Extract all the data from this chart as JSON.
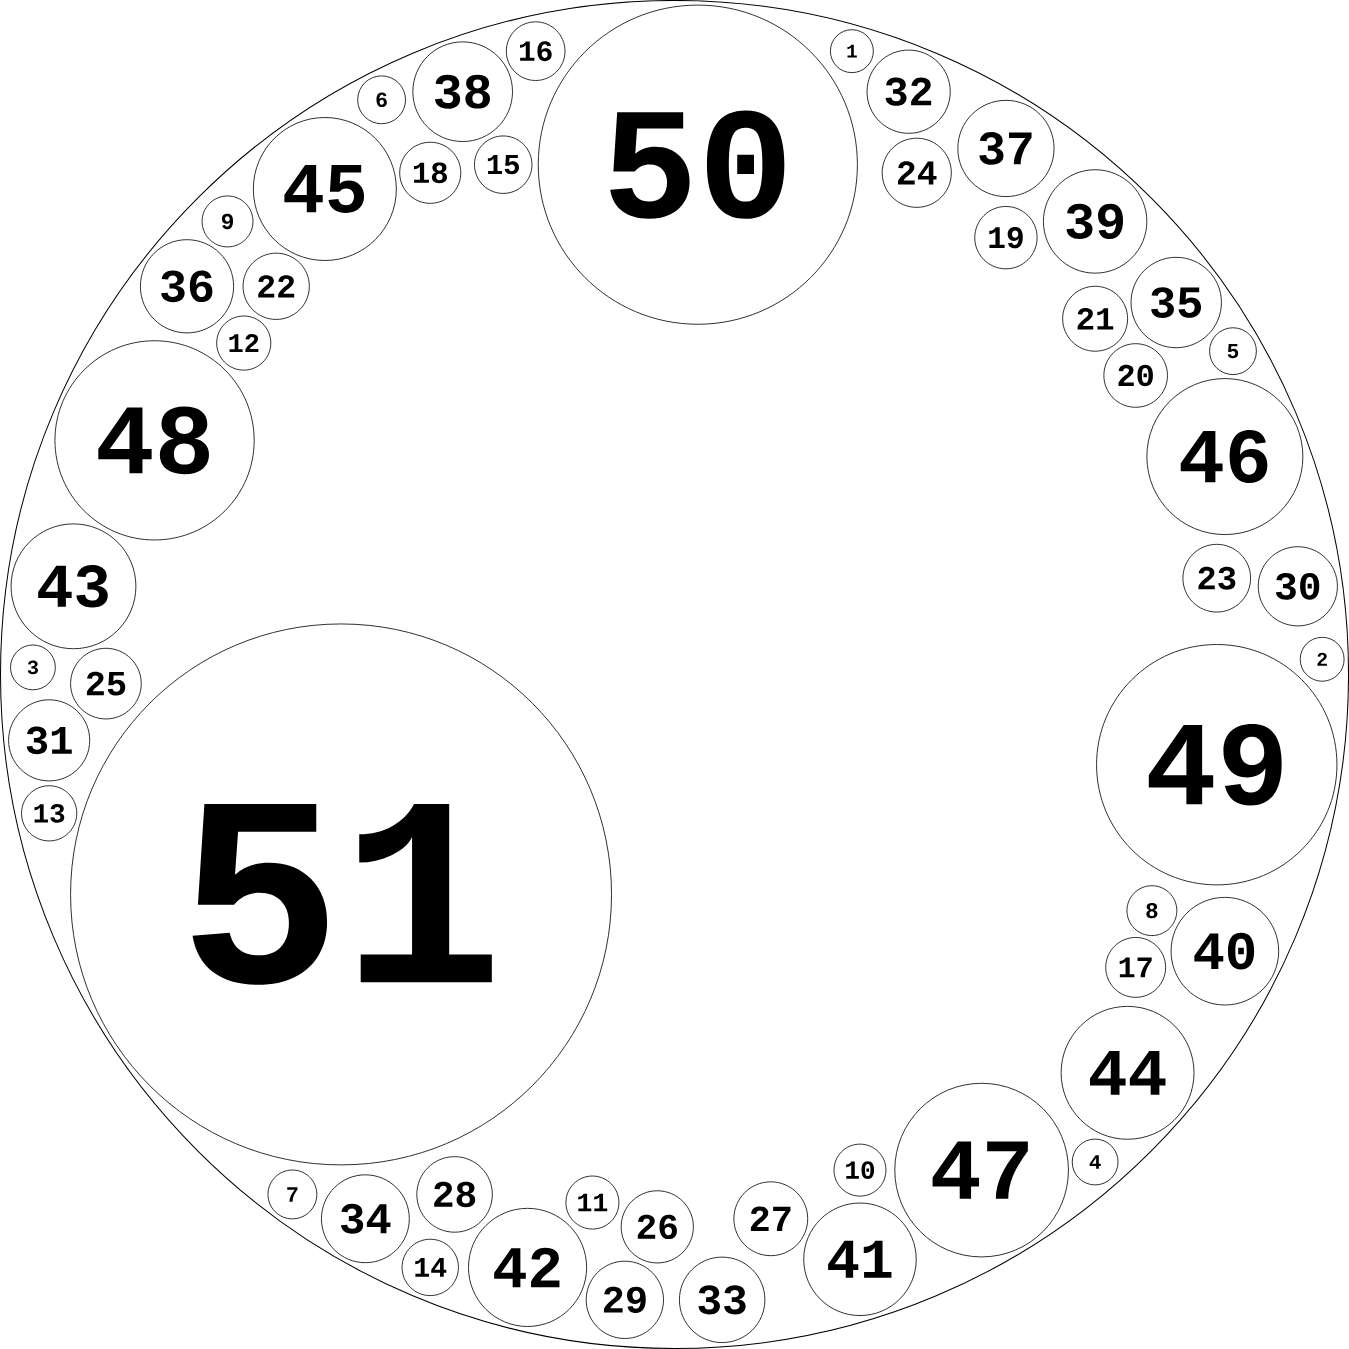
{
  "chart_data": {
    "type": "other",
    "categories": [
      "1",
      "2",
      "3",
      "4",
      "5",
      "6",
      "7",
      "8",
      "9",
      "10",
      "11",
      "12",
      "13",
      "14",
      "15",
      "16",
      "17",
      "18",
      "19",
      "20",
      "21",
      "22",
      "23",
      "24",
      "25",
      "26",
      "27",
      "28",
      "29",
      "30",
      "31",
      "32",
      "33",
      "34",
      "35",
      "36",
      "37",
      "38",
      "39",
      "40",
      "41",
      "42",
      "43",
      "44",
      "45",
      "46",
      "47",
      "48",
      "49",
      "50",
      "51"
    ],
    "values": [
      1,
      2,
      3,
      4,
      5,
      6,
      7,
      8,
      9,
      10,
      11,
      12,
      13,
      14,
      15,
      16,
      17,
      18,
      19,
      20,
      21,
      22,
      23,
      24,
      25,
      26,
      27,
      28,
      29,
      30,
      31,
      32,
      33,
      34,
      35,
      36,
      37,
      38,
      39,
      40,
      41,
      42,
      43,
      44,
      45,
      46,
      47,
      48,
      49,
      50,
      51
    ],
    "data_labels": true
  }
}
